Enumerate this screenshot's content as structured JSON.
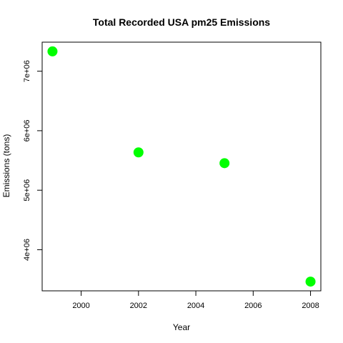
{
  "chart_data": {
    "type": "scatter",
    "title": "Total Recorded USA pm25 Emissions",
    "xlabel": "Year",
    "ylabel": "Emissions (tons)",
    "x": [
      1999,
      2002,
      2005,
      2008
    ],
    "y": [
      7332967,
      5635780,
      5454703,
      3464206
    ],
    "xlim": [
      1999,
      2008
    ],
    "ylim": [
      3464206,
      7332967
    ],
    "xticks": [
      2000,
      2002,
      2004,
      2006,
      2008
    ],
    "xtick_labels": [
      "2000",
      "2002",
      "2004",
      "2006",
      "2008"
    ],
    "yticks": [
      4000000,
      5000000,
      6000000,
      7000000
    ],
    "ytick_labels": [
      "4e+06",
      "5e+06",
      "6e+06",
      "7e+06"
    ],
    "point_color": "#00ff00",
    "grid": false,
    "legend": "none"
  }
}
